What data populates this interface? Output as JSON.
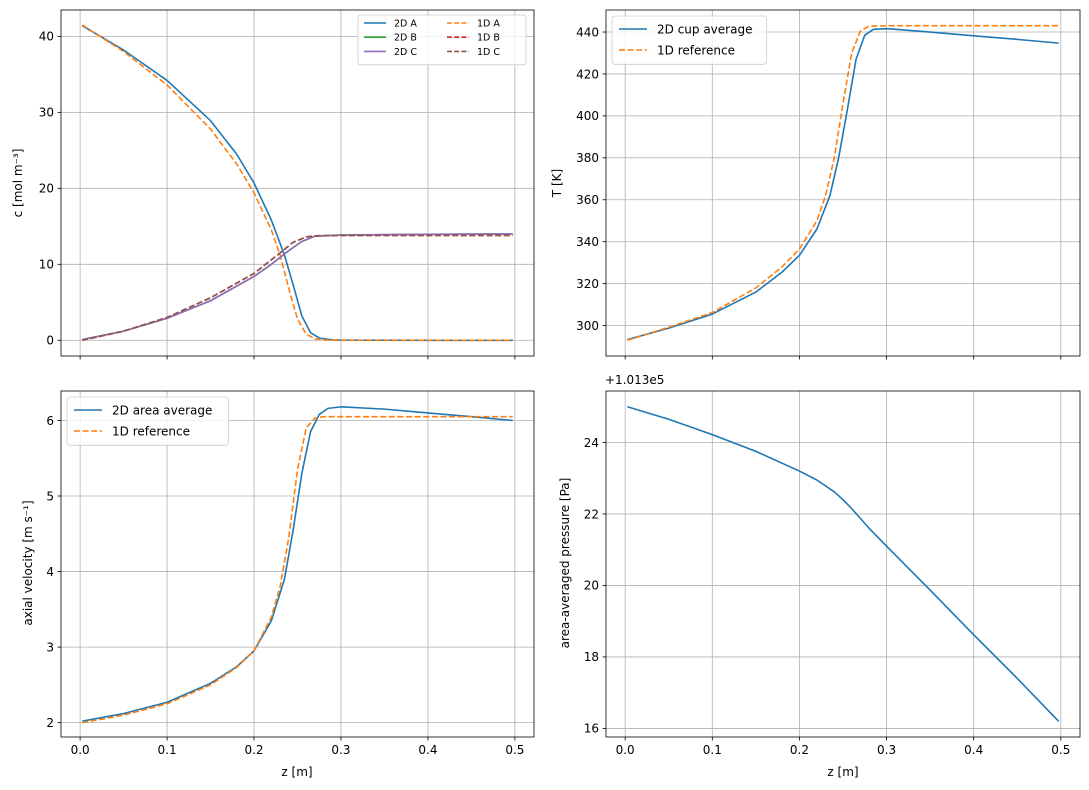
{
  "colors": {
    "c0": "#1f77b4",
    "c1": "#ff7f0e",
    "c2": "#2ca02c",
    "c3": "#d62728",
    "c4": "#9467bd",
    "c5": "#8c564b",
    "grid": "#b0b0b0"
  },
  "chart_data": [
    {
      "type": "line",
      "xlabel": "",
      "ylabel": "c [mol m⁻³]",
      "xlim": [
        -0.022,
        0.522
      ],
      "ylim": [
        -2.07,
        43.47
      ],
      "xticks": [
        0.0,
        0.1,
        0.2,
        0.3,
        0.4,
        0.5
      ],
      "xtick_labels": [
        "",
        "",
        "",
        "",
        "",
        ""
      ],
      "yticks": [
        0,
        10,
        20,
        30,
        40
      ],
      "ytick_labels": [
        "0",
        "10",
        "20",
        "30",
        "40"
      ],
      "grid": true,
      "legend_position": "top-right",
      "legend_columns": 2,
      "series": [
        {
          "name": "2D A",
          "color_key": "c0",
          "dash": "solid",
          "points": [
            [
              0.0025,
              41.4
            ],
            [
              0.05,
              38.2
            ],
            [
              0.1,
              34.2
            ],
            [
              0.15,
              28.9
            ],
            [
              0.18,
              24.5
            ],
            [
              0.2,
              20.7
            ],
            [
              0.22,
              15.8
            ],
            [
              0.235,
              11.2
            ],
            [
              0.245,
              7.3
            ],
            [
              0.255,
              3.2
            ],
            [
              0.265,
              1.0
            ],
            [
              0.275,
              0.3
            ],
            [
              0.29,
              0.05
            ],
            [
              0.3,
              0.02
            ],
            [
              0.4,
              0.0
            ],
            [
              0.4975,
              0.0
            ]
          ]
        },
        {
          "name": "1D A",
          "color_key": "c1",
          "dash": "dashed",
          "points": [
            [
              0.0025,
              41.5
            ],
            [
              0.05,
              38.0
            ],
            [
              0.1,
              33.6
            ],
            [
              0.15,
              27.8
            ],
            [
              0.18,
              23.2
            ],
            [
              0.2,
              19.4
            ],
            [
              0.22,
              14.5
            ],
            [
              0.23,
              11.2
            ],
            [
              0.24,
              6.8
            ],
            [
              0.25,
              2.8
            ],
            [
              0.26,
              0.8
            ],
            [
              0.27,
              0.2
            ],
            [
              0.28,
              0.05
            ],
            [
              0.3,
              0.0
            ],
            [
              0.4,
              0.0
            ],
            [
              0.4975,
              0.0
            ]
          ]
        },
        {
          "name": "2D B",
          "color_key": "c2",
          "dash": "solid",
          "points": [
            [
              0.0025,
              0.1
            ],
            [
              0.05,
              1.2
            ],
            [
              0.1,
              2.9
            ],
            [
              0.15,
              5.2
            ],
            [
              0.2,
              8.4
            ],
            [
              0.22,
              10.0
            ],
            [
              0.24,
              11.8
            ],
            [
              0.255,
              13.0
            ],
            [
              0.27,
              13.7
            ],
            [
              0.3,
              13.85
            ],
            [
              0.4,
              13.95
            ],
            [
              0.4975,
              14.0
            ]
          ]
        },
        {
          "name": "1D B",
          "color_key": "c3",
          "dash": "dashed",
          "points": [
            [
              0.0025,
              0.0
            ],
            [
              0.05,
              1.2
            ],
            [
              0.1,
              3.0
            ],
            [
              0.15,
              5.6
            ],
            [
              0.2,
              8.8
            ],
            [
              0.23,
              11.5
            ],
            [
              0.245,
              12.9
            ],
            [
              0.26,
              13.6
            ],
            [
              0.27,
              13.75
            ],
            [
              0.3,
              13.8
            ],
            [
              0.4,
              13.8
            ],
            [
              0.4975,
              13.8
            ]
          ]
        },
        {
          "name": "2D C",
          "color_key": "c4",
          "dash": "solid",
          "points": [
            [
              0.0025,
              0.1
            ],
            [
              0.05,
              1.2
            ],
            [
              0.1,
              2.9
            ],
            [
              0.15,
              5.2
            ],
            [
              0.2,
              8.4
            ],
            [
              0.22,
              10.0
            ],
            [
              0.24,
              11.8
            ],
            [
              0.255,
              13.0
            ],
            [
              0.27,
              13.7
            ],
            [
              0.3,
              13.85
            ],
            [
              0.4,
              13.95
            ],
            [
              0.4975,
              14.0
            ]
          ]
        },
        {
          "name": "1D C",
          "color_key": "c5",
          "dash": "dashed",
          "points": [
            [
              0.0025,
              0.0
            ],
            [
              0.05,
              1.2
            ],
            [
              0.1,
              3.0
            ],
            [
              0.15,
              5.6
            ],
            [
              0.2,
              8.8
            ],
            [
              0.23,
              11.5
            ],
            [
              0.245,
              12.9
            ],
            [
              0.26,
              13.6
            ],
            [
              0.27,
              13.75
            ],
            [
              0.3,
              13.8
            ],
            [
              0.4,
              13.8
            ],
            [
              0.4975,
              13.8
            ]
          ]
        }
      ]
    },
    {
      "type": "line",
      "xlabel": "",
      "ylabel": "T [K]",
      "xlim": [
        -0.022,
        0.522
      ],
      "ylim": [
        285.5,
        450.5
      ],
      "xticks": [
        0.0,
        0.1,
        0.2,
        0.3,
        0.4,
        0.5
      ],
      "xtick_labels": [
        "",
        "",
        "",
        "",
        "",
        ""
      ],
      "yticks": [
        300,
        320,
        340,
        360,
        380,
        400,
        420,
        440
      ],
      "ytick_labels": [
        "300",
        "320",
        "340",
        "360",
        "380",
        "400",
        "420",
        "440"
      ],
      "grid": true,
      "legend_position": "top-left",
      "legend_columns": 1,
      "series": [
        {
          "name": "2D cup average",
          "color_key": "c0",
          "dash": "solid",
          "points": [
            [
              0.0025,
              293.3
            ],
            [
              0.05,
              298.8
            ],
            [
              0.1,
              305.5
            ],
            [
              0.15,
              316.0
            ],
            [
              0.18,
              325.5
            ],
            [
              0.2,
              333.5
            ],
            [
              0.22,
              346.0
            ],
            [
              0.235,
              362.0
            ],
            [
              0.245,
              380.0
            ],
            [
              0.255,
              403.0
            ],
            [
              0.265,
              427.0
            ],
            [
              0.275,
              438.5
            ],
            [
              0.285,
              441.3
            ],
            [
              0.3,
              441.6
            ],
            [
              0.35,
              440.0
            ],
            [
              0.4,
              438.2
            ],
            [
              0.45,
              436.5
            ],
            [
              0.4975,
              434.7
            ]
          ]
        },
        {
          "name": "1D reference",
          "color_key": "c1",
          "dash": "dashed",
          "points": [
            [
              0.0025,
              293.0
            ],
            [
              0.05,
              299.2
            ],
            [
              0.1,
              306.2
            ],
            [
              0.15,
              318.0
            ],
            [
              0.18,
              328.0
            ],
            [
              0.2,
              336.5
            ],
            [
              0.22,
              350.0
            ],
            [
              0.23,
              362.0
            ],
            [
              0.24,
              380.0
            ],
            [
              0.25,
              406.0
            ],
            [
              0.26,
              430.0
            ],
            [
              0.27,
              440.5
            ],
            [
              0.28,
              442.8
            ],
            [
              0.3,
              443.0
            ],
            [
              0.4,
              443.0
            ],
            [
              0.4975,
              443.0
            ]
          ]
        }
      ]
    },
    {
      "type": "line",
      "xlabel": "z [m]",
      "ylabel": "axial velocity [m s⁻¹]",
      "xlim": [
        -0.022,
        0.522
      ],
      "ylim": [
        1.81,
        6.39
      ],
      "xticks": [
        0.0,
        0.1,
        0.2,
        0.3,
        0.4,
        0.5
      ],
      "xtick_labels": [
        "0.0",
        "0.1",
        "0.2",
        "0.3",
        "0.4",
        "0.5"
      ],
      "yticks": [
        2,
        3,
        4,
        5,
        6
      ],
      "ytick_labels": [
        "2",
        "3",
        "4",
        "5",
        "6"
      ],
      "grid": true,
      "legend_position": "top-left",
      "legend_columns": 1,
      "series": [
        {
          "name": "2D area average",
          "color_key": "c0",
          "dash": "solid",
          "points": [
            [
              0.0025,
              2.02
            ],
            [
              0.05,
              2.12
            ],
            [
              0.1,
              2.27
            ],
            [
              0.15,
              2.52
            ],
            [
              0.18,
              2.74
            ],
            [
              0.2,
              2.95
            ],
            [
              0.22,
              3.35
            ],
            [
              0.235,
              3.9
            ],
            [
              0.245,
              4.55
            ],
            [
              0.255,
              5.3
            ],
            [
              0.265,
              5.85
            ],
            [
              0.275,
              6.08
            ],
            [
              0.285,
              6.16
            ],
            [
              0.3,
              6.18
            ],
            [
              0.35,
              6.15
            ],
            [
              0.4,
              6.1
            ],
            [
              0.45,
              6.05
            ],
            [
              0.4975,
              6.0
            ]
          ]
        },
        {
          "name": "1D reference",
          "color_key": "c1",
          "dash": "dashed",
          "points": [
            [
              0.0025,
              2.0
            ],
            [
              0.05,
              2.1
            ],
            [
              0.1,
              2.25
            ],
            [
              0.15,
              2.5
            ],
            [
              0.18,
              2.73
            ],
            [
              0.2,
              2.95
            ],
            [
              0.22,
              3.4
            ],
            [
              0.23,
              3.8
            ],
            [
              0.24,
              4.45
            ],
            [
              0.25,
              5.35
            ],
            [
              0.26,
              5.9
            ],
            [
              0.27,
              6.03
            ],
            [
              0.28,
              6.05
            ],
            [
              0.3,
              6.05
            ],
            [
              0.4,
              6.05
            ],
            [
              0.4975,
              6.05
            ]
          ]
        }
      ]
    },
    {
      "type": "line",
      "xlabel": "z [m]",
      "ylabel": "area-averaged pressure [Pa]",
      "offset_text": "+1.013e5",
      "xlim": [
        -0.022,
        0.522
      ],
      "ylim": [
        15.76,
        25.44
      ],
      "xticks": [
        0.0,
        0.1,
        0.2,
        0.3,
        0.4,
        0.5
      ],
      "xtick_labels": [
        "0.0",
        "0.1",
        "0.2",
        "0.3",
        "0.4",
        "0.5"
      ],
      "yticks": [
        16,
        18,
        20,
        22,
        24
      ],
      "ytick_labels": [
        "16",
        "18",
        "20",
        "22",
        "24"
      ],
      "grid": true,
      "legend_position": "none",
      "legend_columns": 0,
      "series": [
        {
          "color_key": "c0",
          "dash": "solid",
          "points": [
            [
              0.0025,
              25.0
            ],
            [
              0.05,
              24.65
            ],
            [
              0.1,
              24.22
            ],
            [
              0.15,
              23.75
            ],
            [
              0.2,
              23.2
            ],
            [
              0.22,
              22.95
            ],
            [
              0.24,
              22.62
            ],
            [
              0.25,
              22.4
            ],
            [
              0.26,
              22.15
            ],
            [
              0.28,
              21.6
            ],
            [
              0.3,
              21.1
            ],
            [
              0.35,
              19.87
            ],
            [
              0.4,
              18.62
            ],
            [
              0.45,
              17.4
            ],
            [
              0.4975,
              16.2
            ]
          ]
        }
      ]
    }
  ]
}
